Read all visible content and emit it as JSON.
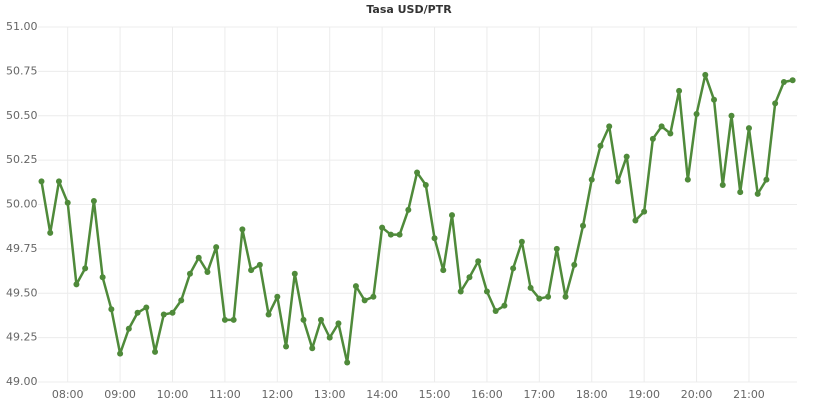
{
  "chart_data": {
    "type": "line",
    "title": "Tasa USD/PTR",
    "x": [
      "07:30",
      "07:40",
      "07:50",
      "08:00",
      "08:10",
      "08:20",
      "08:30",
      "08:40",
      "08:50",
      "09:00",
      "09:10",
      "09:20",
      "09:30",
      "09:40",
      "09:50",
      "10:00",
      "10:10",
      "10:20",
      "10:30",
      "10:40",
      "10:50",
      "11:00",
      "11:10",
      "11:20",
      "11:30",
      "11:40",
      "11:50",
      "12:00",
      "12:10",
      "12:20",
      "12:30",
      "12:40",
      "12:50",
      "13:00",
      "13:10",
      "13:20",
      "13:30",
      "13:40",
      "13:50",
      "14:00",
      "14:10",
      "14:20",
      "14:30",
      "14:40",
      "14:50",
      "15:00",
      "15:10",
      "15:20",
      "15:30",
      "15:40",
      "15:50",
      "16:00",
      "16:10",
      "16:20",
      "16:30",
      "16:40",
      "16:50",
      "17:00",
      "17:10",
      "17:20",
      "17:30",
      "17:40",
      "17:50",
      "18:00",
      "18:10",
      "18:20",
      "18:30",
      "18:40",
      "18:50",
      "19:00",
      "19:10",
      "19:20",
      "19:30",
      "19:40",
      "19:50",
      "20:00",
      "20:10",
      "20:20",
      "20:30",
      "20:40",
      "20:50",
      "21:00",
      "21:10",
      "21:20",
      "21:30",
      "21:40",
      "21:50"
    ],
    "series": [
      {
        "name": "USD/PTR",
        "color": "#4f8a3a",
        "values": [
          50.13,
          49.84,
          50.13,
          50.01,
          49.55,
          49.64,
          50.02,
          49.59,
          49.41,
          49.16,
          49.3,
          49.39,
          49.42,
          49.17,
          49.38,
          49.39,
          49.46,
          49.61,
          49.7,
          49.62,
          49.76,
          49.35,
          49.35,
          49.86,
          49.63,
          49.66,
          49.38,
          49.48,
          49.2,
          49.61,
          49.35,
          49.19,
          49.35,
          49.25,
          49.33,
          49.11,
          49.54,
          49.46,
          49.48,
          49.87,
          49.83,
          49.83,
          49.97,
          50.18,
          50.11,
          49.81,
          49.63,
          49.94,
          49.51,
          49.59,
          49.68,
          49.51,
          49.4,
          49.43,
          49.64,
          49.79,
          49.53,
          49.47,
          49.48,
          49.75,
          49.48,
          49.66,
          49.88,
          50.14,
          50.33,
          50.44,
          50.13,
          50.27,
          49.91,
          49.96,
          50.37,
          50.44,
          50.4,
          50.64,
          50.14,
          50.51,
          50.73,
          50.59,
          50.11,
          50.5,
          50.07,
          50.43,
          50.06,
          50.14,
          50.57,
          50.69,
          50.7
        ]
      }
    ],
    "xlim": [
      "07:26",
      "21:55"
    ],
    "xticks": [
      "08:00",
      "09:00",
      "10:00",
      "11:00",
      "12:00",
      "13:00",
      "14:00",
      "15:00",
      "16:00",
      "17:00",
      "18:00",
      "19:00",
      "20:00",
      "21:00"
    ],
    "ylim": [
      49,
      51
    ],
    "yticks": [
      {
        "value": 49,
        "label": "49.00"
      },
      49.25,
      {
        "value": 49.5,
        "label": "49.50"
      },
      49.75,
      {
        "value": 50,
        "label": "50.00"
      },
      50.25,
      {
        "value": 50.5,
        "label": "50.50"
      },
      50.75,
      {
        "value": 51,
        "label": "51.00"
      }
    ],
    "grid": true
  }
}
